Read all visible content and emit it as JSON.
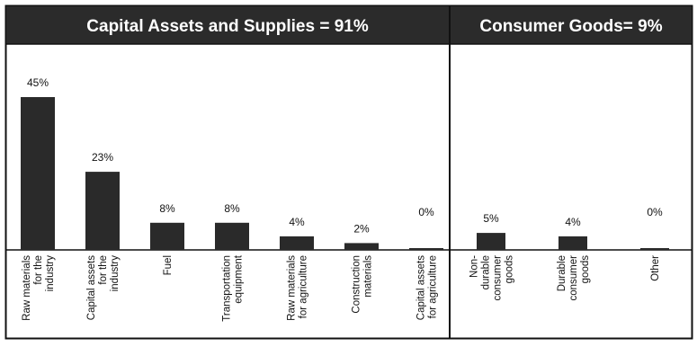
{
  "chart_data": [
    {
      "type": "bar",
      "title": "Capital Assets and Supplies = 91%",
      "categories": [
        "Raw materials for the industry",
        "Capital assets for the industry",
        "Fuel",
        "Transportation equipment",
        "Raw materials for agriculture",
        "Construction materials",
        "Capital assets for agriculture"
      ],
      "category_lines": [
        [
          "Raw materials",
          "for the",
          "industry"
        ],
        [
          "Capital assets",
          "for the",
          "industry"
        ],
        [
          "Fuel"
        ],
        [
          "Transportation",
          "equipment"
        ],
        [
          "Raw materials",
          "for agriculture"
        ],
        [
          "Construction",
          "materials"
        ],
        [
          "Capital assets",
          "for agriculture"
        ]
      ],
      "values": [
        45,
        23,
        8,
        8,
        4,
        2,
        0
      ],
      "data_labels": [
        "45%",
        "23%",
        "8%",
        "8%",
        "4%",
        "2%",
        "0%"
      ],
      "xlabel": "",
      "ylabel": "",
      "ylim": [
        0,
        45
      ],
      "grid": false
    },
    {
      "type": "bar",
      "title": "Consumer Goods= 9%",
      "categories": [
        "Non-durable consumer goods",
        "Durable consumer goods",
        "Other"
      ],
      "category_lines": [
        [
          "Non-",
          "durable",
          "consumer",
          "goods"
        ],
        [
          "Durable",
          "consumer",
          "goods"
        ],
        [
          "Other"
        ]
      ],
      "values": [
        5,
        4,
        0
      ],
      "data_labels": [
        "5%",
        "4%",
        "0%"
      ],
      "xlabel": "",
      "ylabel": "",
      "ylim": [
        0,
        45
      ],
      "grid": false
    }
  ],
  "colors": {
    "header_bg": "#2b2b2b",
    "header_text": "#ffffff",
    "bar": "#2a2a2a",
    "border": "#111111"
  }
}
